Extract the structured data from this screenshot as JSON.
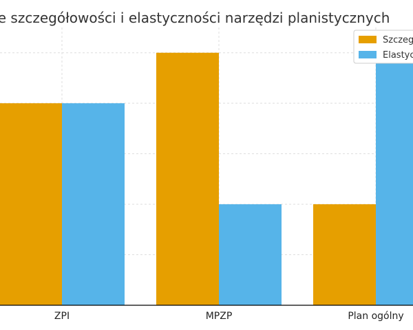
{
  "chart_data": {
    "type": "bar",
    "title": "Porównanie szczegółowości i elastyczności narzędzi planistycznych",
    "categories": [
      "ZPI",
      "MPZP",
      "Plan ogólny"
    ],
    "series": [
      {
        "name": "Szczegółowość",
        "values": [
          4,
          5,
          2
        ],
        "color": "#E69F00"
      },
      {
        "name": "Elastyczność",
        "values": [
          4,
          2,
          5
        ],
        "color": "#56B4E9"
      }
    ],
    "ylim": [
      0,
      5.5
    ],
    "grid": true,
    "legend": "top-right",
    "xlabel": "",
    "ylabel": ""
  }
}
